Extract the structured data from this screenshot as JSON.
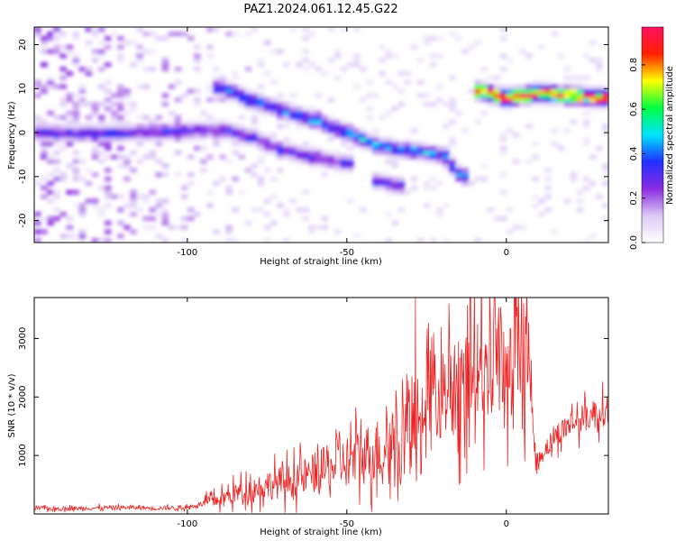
{
  "figure_title": "PAZ1.2024.061.12.45.G22",
  "chart_data": [
    {
      "type": "heatmap",
      "xlabel": "Height of straight line (km)",
      "ylabel": "Frequency (Hz)",
      "xlim": [
        -148,
        32
      ],
      "ylim": [
        -25,
        24
      ],
      "x_ticks": [
        -100,
        -50,
        0
      ],
      "y_ticks": [
        -20,
        -10,
        0,
        10,
        20
      ],
      "colorbar": {
        "label": "Normalized spectral amplitude",
        "range": [
          0.0,
          0.97
        ],
        "ticks": [
          0.0,
          0.2,
          0.4,
          0.6,
          0.8
        ],
        "colormap": [
          "#ffffff",
          "#dcc8f5",
          "#8a2be2",
          "#2030ff",
          "#00e5ff",
          "#00ff40",
          "#ffff00",
          "#ff2000",
          "#ff1060"
        ]
      },
      "ridges": [
        {
          "points": [
            [
              -145,
              0
            ],
            [
              -120,
              0
            ],
            [
              -100,
              0.5
            ],
            [
              -88,
              0.5
            ],
            [
              -80,
              -1
            ],
            [
              -70,
              -4
            ],
            [
              -60,
              -5.5
            ],
            [
              -50,
              -7
            ]
          ],
          "amplitude": 0.3
        },
        {
          "points": [
            [
              -90,
              10.5
            ],
            [
              -80,
              7.5
            ],
            [
              -70,
              5
            ],
            [
              -60,
              3
            ],
            [
              -50,
              0
            ],
            [
              -40,
              -3
            ],
            [
              -30,
              -4
            ],
            [
              -20,
              -5
            ],
            [
              -14,
              -10
            ]
          ],
          "amplitude": 0.4
        },
        {
          "points": [
            [
              -40,
              -11
            ],
            [
              -35,
              -12
            ]
          ],
          "amplitude": 0.3
        },
        {
          "points": [
            [
              -8,
              9.5
            ],
            [
              0,
              8
            ],
            [
              10,
              9
            ],
            [
              20,
              8.5
            ],
            [
              30,
              8
            ]
          ],
          "amplitude": 0.9
        }
      ]
    },
    {
      "type": "line",
      "xlabel": "Height of straight line (km)",
      "ylabel": "SNR (10 * v/v)",
      "xlim": [
        -148,
        32
      ],
      "ylim": [
        0,
        3700
      ],
      "x_ticks": [
        -100,
        -50,
        0
      ],
      "y_ticks": [
        1000,
        2000,
        3000
      ],
      "color": "#ee2222",
      "series": [
        {
          "x": [
            -148,
            -140,
            -130,
            -120,
            -110,
            -100,
            -95,
            -90,
            -85,
            -80,
            -75,
            -70,
            -65,
            -60,
            -55,
            -50,
            -45,
            -40,
            -35,
            -30,
            -28,
            -25,
            -20,
            -17,
            -15,
            -12,
            -10,
            -8,
            -5,
            -2,
            0,
            2,
            4,
            6,
            7,
            8,
            9,
            10,
            12,
            15,
            18,
            20,
            25,
            30,
            32
          ],
          "y": [
            100,
            90,
            100,
            110,
            100,
            110,
            180,
            250,
            350,
            420,
            500,
            550,
            600,
            700,
            800,
            900,
            1000,
            1100,
            1250,
            1500,
            1800,
            2000,
            2100,
            2200,
            2300,
            2400,
            2500,
            2600,
            2650,
            2700,
            2750,
            2800,
            2850,
            2900,
            2950,
            1800,
            1000,
            900,
            1100,
            1300,
            1450,
            1550,
            1650,
            1750,
            1800
          ],
          "peaks": [
            [
              -28.5,
              3700
            ],
            [
              -18,
              3520
            ],
            [
              -15,
              2950
            ],
            [
              -9,
              3250
            ],
            [
              6.5,
              3450
            ],
            [
              6,
              3300
            ]
          ]
        }
      ]
    }
  ]
}
